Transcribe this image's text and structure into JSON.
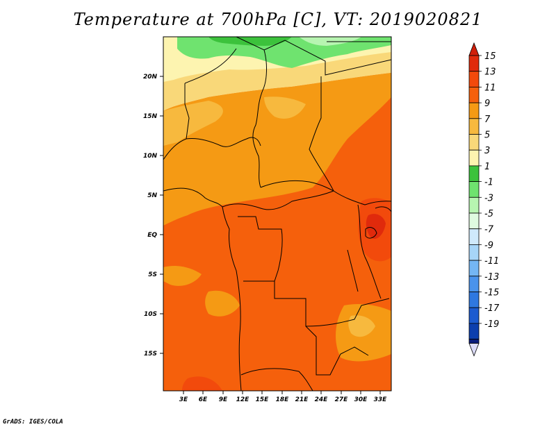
{
  "title": "Temperature at 700hPa [C], VT: 2019020821",
  "credit": "GrADS: IGES/COLA",
  "map": {
    "variable": "Temperature at 700hPa",
    "units": "C",
    "valid_time": "2019020821",
    "lat_labels": [
      "20N",
      "15N",
      "10N",
      "5N",
      "EQ",
      "5S",
      "10S",
      "15S"
    ],
    "lon_labels": [
      "3E",
      "6E",
      "9E",
      "12E",
      "15E",
      "18E",
      "21E",
      "24E",
      "27E",
      "30E",
      "33E"
    ]
  },
  "colorbar": {
    "levels": [
      {
        "label": "15",
        "color": "#e02a0c"
      },
      {
        "label": "13",
        "color": "#f24a0c"
      },
      {
        "label": "11",
        "color": "#f5600c"
      },
      {
        "label": "9",
        "color": "#f59a14"
      },
      {
        "label": "7",
        "color": "#f7b93e"
      },
      {
        "label": "5",
        "color": "#f9d879"
      },
      {
        "label": "3",
        "color": "#fdf4b0"
      },
      {
        "label": "1",
        "color": "#3cc23c"
      },
      {
        "label": "-1",
        "color": "#6fe36f"
      },
      {
        "label": "-3",
        "color": "#b7f5b1"
      },
      {
        "label": "-5",
        "color": "#dffbe0"
      },
      {
        "label": "-7",
        "color": "#cfe9fb"
      },
      {
        "label": "-9",
        "color": "#a7d5f8"
      },
      {
        "label": "-11",
        "color": "#74b6f4"
      },
      {
        "label": "-13",
        "color": "#4a93ec"
      },
      {
        "label": "-15",
        "color": "#2f78e0"
      },
      {
        "label": "-17",
        "color": "#1c5bd0"
      },
      {
        "label": "-19",
        "color": "#0c3fae"
      }
    ],
    "top_arrow_color": "#d01f0a",
    "bottom_arrow_color": "#dcdcf8",
    "bottom_extra_color": "#0a1c7a"
  }
}
